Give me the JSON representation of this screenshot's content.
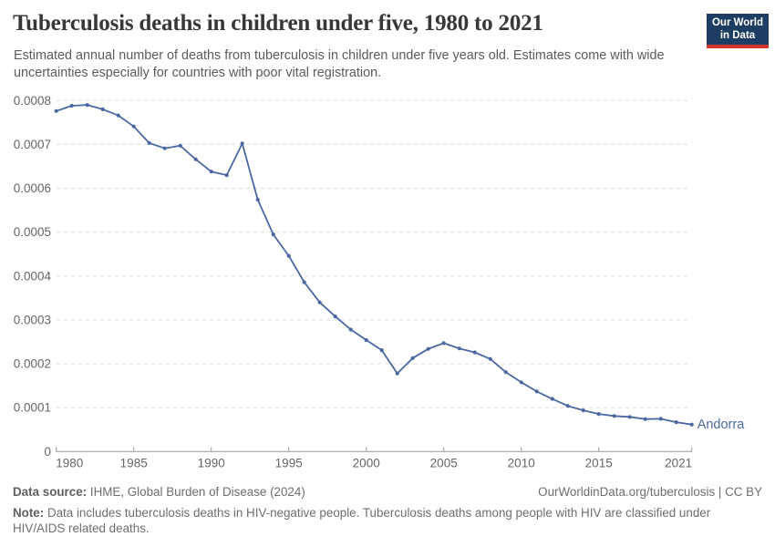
{
  "header": {
    "title": "Tuberculosis deaths in children under five, 1980 to 2021",
    "subtitle": "Estimated annual number of deaths from tuberculosis in children under five years old. Estimates come with wide uncertainties especially for countries with poor vital registration.",
    "logo": {
      "line1": "Our World",
      "line2": "in Data"
    }
  },
  "chart_data": {
    "type": "line",
    "title": "Tuberculosis deaths in children under five, 1980 to 2021",
    "xlabel": "",
    "ylabel": "",
    "xlim": [
      1980,
      2021
    ],
    "ylim": [
      0,
      0.0008
    ],
    "grid": "horizontal-dashed",
    "legend_position": "end-of-line-label",
    "xticks": [
      1980,
      1985,
      1990,
      1995,
      2000,
      2005,
      2010,
      2015,
      2021
    ],
    "yticks": [
      0,
      0.0001,
      0.0002,
      0.0003,
      0.0004,
      0.0005,
      0.0006,
      0.0007,
      0.0008
    ],
    "ytick_labels": [
      "0",
      "0.0001",
      "0.0002",
      "0.0003",
      "0.0004",
      "0.0005",
      "0.0006",
      "0.0007",
      "0.0008"
    ],
    "series": [
      {
        "name": "Andorra",
        "x": [
          1980,
          1981,
          1982,
          1983,
          1984,
          1985,
          1986,
          1987,
          1988,
          1989,
          1990,
          1991,
          1992,
          1993,
          1994,
          1995,
          1996,
          1997,
          1998,
          1999,
          2000,
          2001,
          2002,
          2003,
          2004,
          2005,
          2006,
          2007,
          2008,
          2009,
          2010,
          2011,
          2012,
          2013,
          2014,
          2015,
          2016,
          2017,
          2018,
          2019,
          2020,
          2021
        ],
        "values": [
          0.000776,
          0.000788,
          0.00079,
          0.00078,
          0.000766,
          0.000741,
          0.000703,
          0.000691,
          0.000697,
          0.000666,
          0.000638,
          0.00063,
          0.000702,
          0.000574,
          0.000495,
          0.000446,
          0.000386,
          0.00034,
          0.000308,
          0.000278,
          0.000254,
          0.000231,
          0.000178,
          0.000213,
          0.000234,
          0.000247,
          0.000235,
          0.000226,
          0.000211,
          0.000181,
          0.000158,
          0.000137,
          0.00012,
          0.000104,
          9.4e-05,
          8.55e-05,
          8.1e-05,
          7.9e-05,
          7.4e-05,
          7.45e-05,
          6.7e-05,
          6.15e-05
        ]
      }
    ],
    "colors": {
      "line": "#4a69a2",
      "grid": "#dcdcdc",
      "axis": "#999999",
      "tick_label": "#666666"
    }
  },
  "footer": {
    "datasource_label": "Data source:",
    "datasource_text": " IHME, Global Burden of Disease (2024)",
    "link": "OurWorldinData.org/tuberculosis | CC BY",
    "note_label": "Note:",
    "note_text": " Data includes tuberculosis deaths in HIV-negative people. Tuberculosis deaths among people with HIV are classified under HIV/AIDS related deaths."
  }
}
